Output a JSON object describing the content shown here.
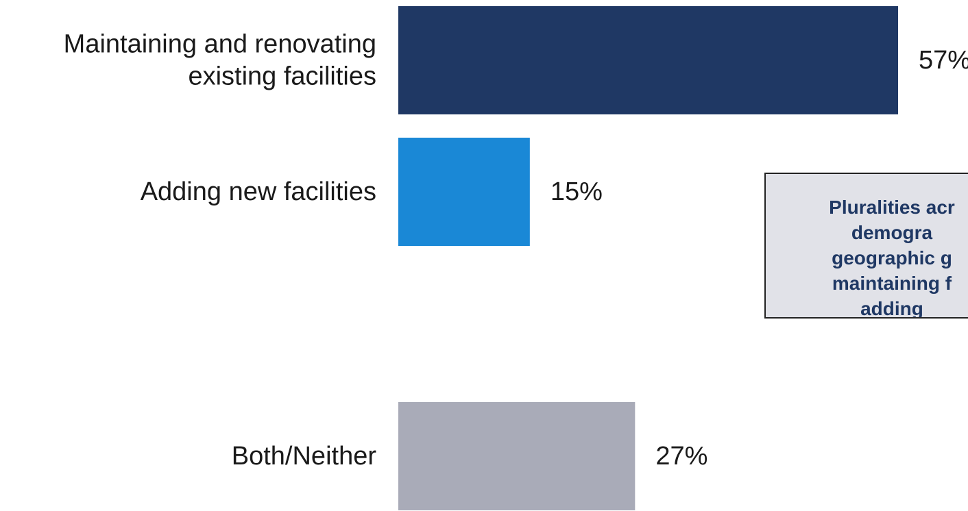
{
  "chart_data": {
    "type": "bar",
    "orientation": "horizontal",
    "categories": [
      [
        "Maintaining and renovating",
        "existing facilities"
      ],
      [
        "Adding new facilities"
      ],
      [
        "Both/Neither"
      ]
    ],
    "values": [
      57,
      15,
      27
    ],
    "value_labels": [
      "57%",
      "15%",
      "27%"
    ],
    "colors": [
      "#1f3864",
      "#1a88d6",
      "#a9abb8"
    ],
    "xlim": [
      0,
      100
    ],
    "grid": false,
    "legend": "none"
  },
  "callout": {
    "text": "Pluralities acr\ndemogra\ngeographic g\nmaintaining f\nadding"
  }
}
